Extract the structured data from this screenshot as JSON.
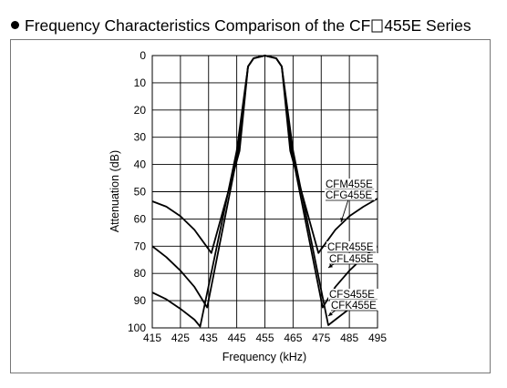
{
  "header": {
    "prefix": "Frequency Characteristics Comparison of the CF",
    "suffix": "455E Series"
  },
  "chart_data": {
    "type": "line",
    "title": "Frequency Characteristics Comparison of the CF□455E Series",
    "xlabel": "Frequency (kHz)",
    "ylabel": "Attenuation (dB)",
    "xlim": [
      415,
      495
    ],
    "ylim": [
      0,
      100
    ],
    "y_inverted": true,
    "grid": true,
    "xticks": [
      415,
      425,
      435,
      445,
      455,
      465,
      475,
      485,
      495
    ],
    "yticks": [
      0,
      10,
      20,
      30,
      40,
      50,
      60,
      70,
      80,
      90,
      100
    ],
    "series": [
      {
        "name": "CFM455E / CFG455E",
        "points": [
          [
            415,
            53.5
          ],
          [
            420,
            55.5
          ],
          [
            425,
            59
          ],
          [
            430,
            64
          ],
          [
            436,
            72.5
          ],
          [
            446,
            35
          ],
          [
            449,
            4
          ],
          [
            451,
            1
          ],
          [
            455,
            0
          ],
          [
            459,
            1
          ],
          [
            461,
            4
          ],
          [
            464,
            35
          ],
          [
            474,
            72.5
          ],
          [
            480,
            64
          ],
          [
            485,
            59
          ],
          [
            490,
            55.5
          ],
          [
            495,
            52.5
          ]
        ]
      },
      {
        "name": "CFR455E / CFL455E",
        "points": [
          [
            415,
            70
          ],
          [
            420,
            74
          ],
          [
            425,
            79
          ],
          [
            430,
            85
          ],
          [
            434.5,
            92.5
          ],
          [
            445.5,
            35
          ],
          [
            449,
            4
          ],
          [
            451,
            1
          ],
          [
            455,
            0
          ],
          [
            459,
            1
          ],
          [
            461,
            4
          ],
          [
            464.5,
            35
          ],
          [
            475.5,
            92.5
          ],
          [
            480,
            85
          ],
          [
            485,
            79
          ],
          [
            490,
            74
          ],
          [
            495,
            70
          ]
        ]
      },
      {
        "name": "CFS455E / CFK455E",
        "points": [
          [
            415,
            87
          ],
          [
            420,
            89.5
          ],
          [
            425,
            93
          ],
          [
            430,
            97
          ],
          [
            432,
            99.5
          ],
          [
            445,
            35
          ],
          [
            449,
            4
          ],
          [
            451,
            1
          ],
          [
            455,
            0
          ],
          [
            459,
            1
          ],
          [
            461,
            4
          ],
          [
            465,
            35
          ],
          [
            477.5,
            99
          ],
          [
            480,
            97
          ],
          [
            485,
            93
          ],
          [
            490,
            89.5
          ],
          [
            495,
            87
          ]
        ]
      }
    ],
    "annotations": [
      {
        "text": "CFM455E",
        "series": 0
      },
      {
        "text": "CFG455E",
        "series": 0
      },
      {
        "text": "CFR455E",
        "series": 1
      },
      {
        "text": "CFL455E",
        "series": 1
      },
      {
        "text": "CFS455E",
        "series": 2
      },
      {
        "text": "CFK455E",
        "series": 2
      }
    ]
  }
}
